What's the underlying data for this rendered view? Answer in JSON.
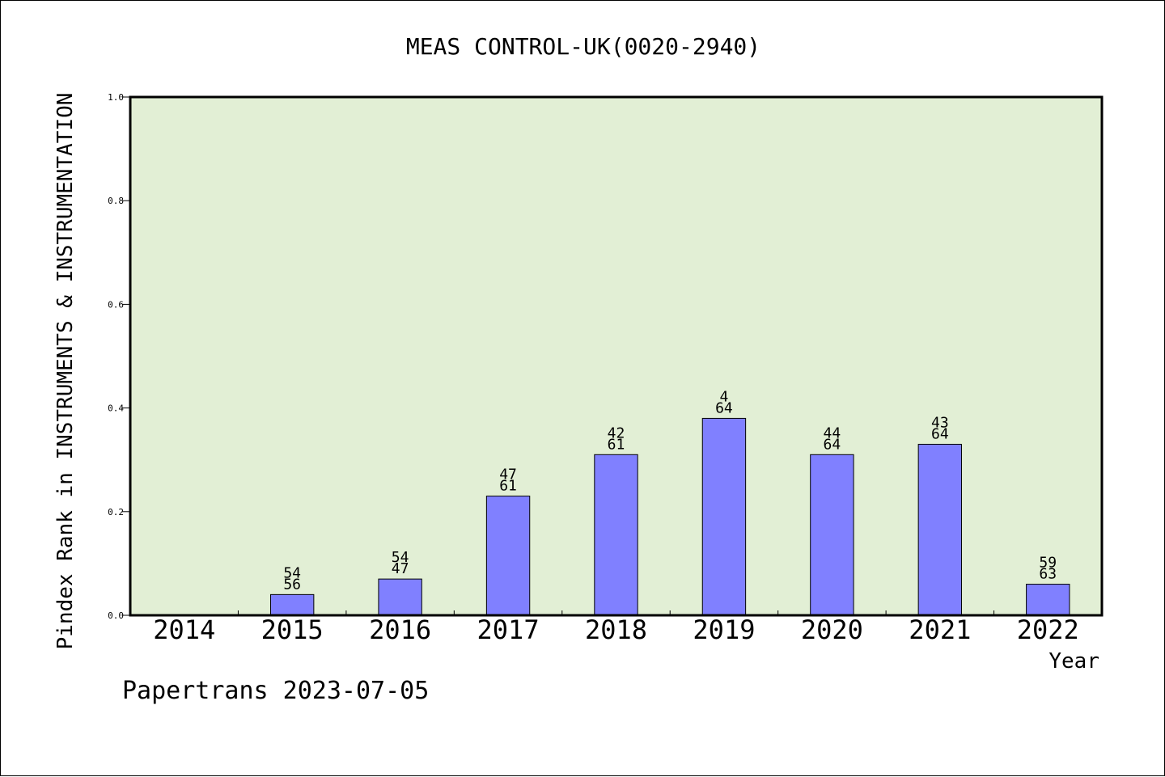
{
  "chart_data": {
    "type": "bar",
    "title": "MEAS CONTROL-UK(0020-2940)",
    "xlabel": "Year",
    "ylabel": "Pindex Rank in INSTRUMENTS & INSTRUMENTATION",
    "categories": [
      "2014",
      "2015",
      "2016",
      "2017",
      "2018",
      "2019",
      "2020",
      "2021",
      "2022"
    ],
    "values": [
      null,
      0.04,
      0.07,
      0.23,
      0.31,
      0.38,
      0.31,
      0.33,
      0.06
    ],
    "bar_labels": [
      [
        "",
        ""
      ],
      [
        "54",
        "56"
      ],
      [
        "54",
        "47"
      ],
      [
        "47",
        "61"
      ],
      [
        "42",
        "61"
      ],
      [
        "4",
        "64"
      ],
      [
        "44",
        "64"
      ],
      [
        "43",
        "64"
      ],
      [
        "59",
        "63"
      ]
    ],
    "ylim": [
      0.0,
      1.0
    ],
    "yticks": [
      "0.0",
      "0.2",
      "0.4",
      "0.6",
      "0.8",
      "1.0"
    ],
    "grid": false,
    "colors": {
      "plot_background": "#e2efd5",
      "bar_fill": "#8080ff",
      "bar_edge": "#000000"
    }
  },
  "footer": "Papertrans 2023-07-05"
}
